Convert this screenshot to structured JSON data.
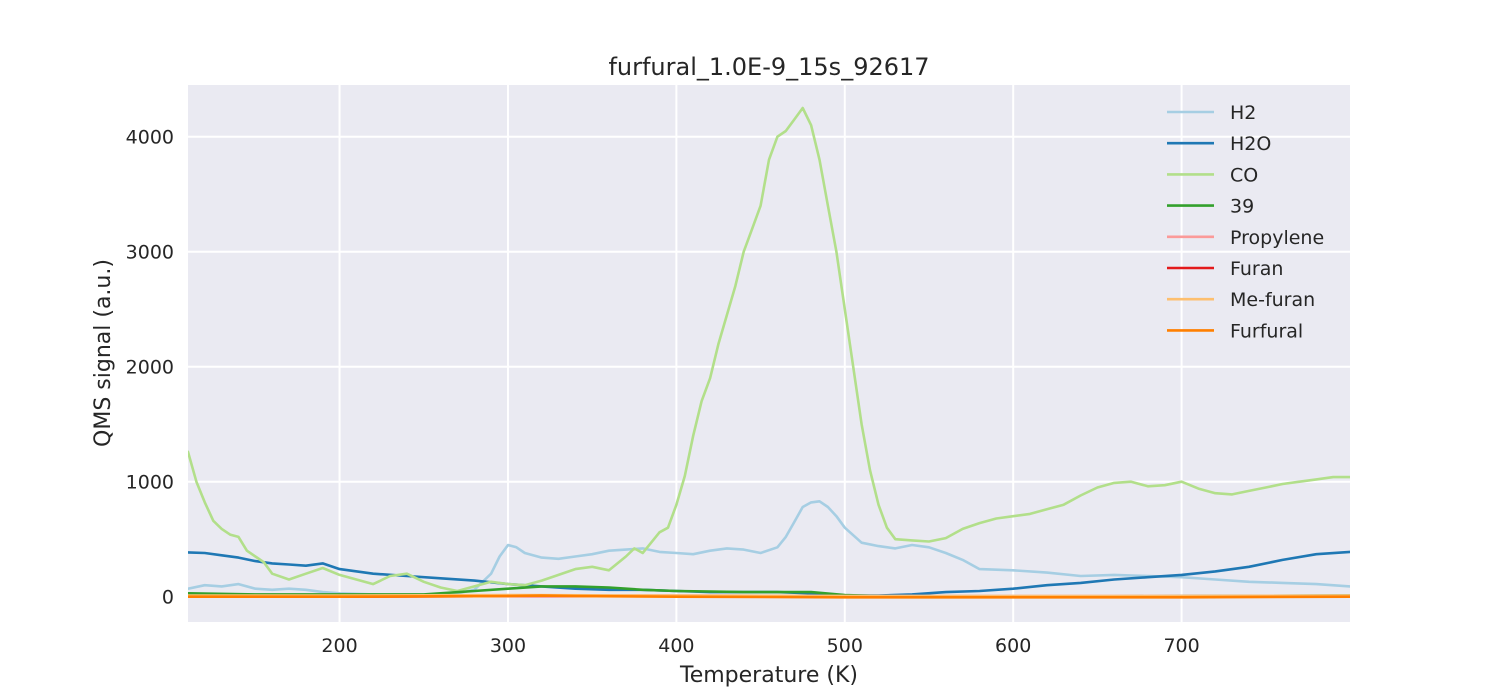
{
  "chart_data": {
    "type": "line",
    "title": "furfural_1.0E-9_15s_92617",
    "xlabel": "Temperature (K)",
    "ylabel": "QMS signal (a.u.)",
    "xlim": [
      110,
      800
    ],
    "ylim": [
      -220,
      4450
    ],
    "xticks": [
      200,
      300,
      400,
      500,
      600,
      700
    ],
    "yticks": [
      0,
      1000,
      2000,
      3000,
      4000
    ],
    "xtick_labels": [
      "200",
      "300",
      "400",
      "500",
      "600",
      "700"
    ],
    "ytick_labels": [
      "0",
      "1000",
      "2000",
      "3000",
      "4000"
    ],
    "grid": true,
    "background": "#eaeaf2",
    "legend_position": "top-right",
    "series": [
      {
        "name": "H2",
        "color": "#a6cee3",
        "x": [
          110,
          120,
          130,
          140,
          150,
          160,
          170,
          180,
          190,
          200,
          220,
          240,
          260,
          270,
          280,
          290,
          295,
          300,
          305,
          310,
          320,
          330,
          340,
          350,
          360,
          370,
          380,
          390,
          400,
          410,
          420,
          430,
          440,
          450,
          460,
          465,
          470,
          475,
          480,
          485,
          490,
          495,
          500,
          510,
          520,
          530,
          540,
          550,
          560,
          570,
          580,
          600,
          620,
          640,
          660,
          680,
          700,
          720,
          740,
          760,
          780,
          800
        ],
        "y": [
          70,
          100,
          90,
          110,
          70,
          60,
          70,
          60,
          40,
          30,
          20,
          10,
          20,
          30,
          60,
          200,
          350,
          450,
          430,
          380,
          340,
          330,
          350,
          370,
          400,
          410,
          420,
          390,
          380,
          370,
          400,
          420,
          410,
          380,
          430,
          520,
          650,
          780,
          820,
          830,
          780,
          700,
          600,
          470,
          440,
          420,
          450,
          430,
          380,
          320,
          240,
          230,
          210,
          180,
          190,
          180,
          170,
          150,
          130,
          120,
          110,
          90
        ]
      },
      {
        "name": "H2O",
        "color": "#1f78b4",
        "x": [
          110,
          120,
          130,
          140,
          150,
          160,
          170,
          180,
          190,
          200,
          220,
          240,
          260,
          280,
          300,
          320,
          340,
          360,
          380,
          400,
          420,
          440,
          460,
          480,
          500,
          520,
          540,
          560,
          580,
          600,
          620,
          640,
          660,
          680,
          700,
          720,
          740,
          760,
          780,
          800
        ],
        "y": [
          385,
          380,
          360,
          340,
          310,
          290,
          280,
          270,
          290,
          240,
          200,
          180,
          160,
          140,
          110,
          90,
          70,
          60,
          60,
          50,
          40,
          40,
          40,
          30,
          10,
          10,
          20,
          40,
          50,
          70,
          100,
          120,
          150,
          170,
          190,
          220,
          260,
          320,
          370,
          390
        ]
      },
      {
        "name": "CO",
        "color": "#b2df8a",
        "x": [
          110,
          115,
          120,
          125,
          130,
          135,
          140,
          145,
          150,
          155,
          160,
          170,
          180,
          190,
          200,
          210,
          220,
          230,
          240,
          250,
          260,
          270,
          280,
          290,
          300,
          310,
          320,
          330,
          340,
          350,
          360,
          370,
          375,
          380,
          385,
          390,
          395,
          400,
          405,
          410,
          415,
          420,
          425,
          430,
          435,
          440,
          445,
          450,
          455,
          460,
          465,
          470,
          475,
          480,
          485,
          490,
          495,
          500,
          505,
          510,
          515,
          520,
          525,
          530,
          540,
          550,
          560,
          570,
          580,
          590,
          600,
          610,
          620,
          630,
          640,
          650,
          660,
          670,
          680,
          690,
          700,
          710,
          720,
          730,
          740,
          750,
          760,
          770,
          780,
          790,
          800
        ],
        "y": [
          1260,
          1000,
          820,
          660,
          590,
          540,
          520,
          400,
          350,
          300,
          200,
          150,
          200,
          250,
          190,
          150,
          110,
          180,
          200,
          130,
          80,
          50,
          90,
          130,
          110,
          100,
          140,
          190,
          240,
          260,
          230,
          350,
          420,
          380,
          470,
          560,
          600,
          800,
          1050,
          1400,
          1700,
          1900,
          2200,
          2450,
          2700,
          3000,
          3200,
          3400,
          3800,
          4000,
          4050,
          4150,
          4250,
          4100,
          3800,
          3400,
          3000,
          2500,
          2000,
          1500,
          1100,
          800,
          600,
          500,
          490,
          480,
          510,
          590,
          640,
          680,
          700,
          720,
          760,
          800,
          880,
          950,
          990,
          1000,
          960,
          970,
          1000,
          940,
          900,
          890,
          920,
          950,
          980,
          1000,
          1020,
          1040,
          1040
        ]
      },
      {
        "name": "39",
        "color": "#33a02c",
        "x": [
          110,
          150,
          200,
          250,
          280,
          300,
          320,
          340,
          360,
          380,
          400,
          420,
          440,
          460,
          480,
          500,
          520,
          560,
          600,
          700,
          800
        ],
        "y": [
          30,
          20,
          20,
          20,
          50,
          70,
          90,
          90,
          80,
          60,
          50,
          45,
          40,
          40,
          40,
          15,
          5,
          0,
          0,
          5,
          10
        ]
      },
      {
        "name": "Propylene",
        "color": "#fb9a99",
        "x": [
          110,
          200,
          300,
          400,
          500,
          600,
          700,
          800
        ],
        "y": [
          5,
          5,
          10,
          10,
          5,
          5,
          5,
          5
        ]
      },
      {
        "name": "Furan",
        "color": "#e31a1c",
        "x": [
          110,
          200,
          300,
          400,
          500,
          600,
          700,
          800
        ],
        "y": [
          0,
          0,
          5,
          5,
          0,
          0,
          0,
          0
        ]
      },
      {
        "name": "Me-furan",
        "color": "#fdbf6f",
        "x": [
          110,
          200,
          300,
          400,
          500,
          600,
          700,
          800
        ],
        "y": [
          10,
          10,
          15,
          10,
          5,
          5,
          5,
          10
        ]
      },
      {
        "name": "Furfural",
        "color": "#ff7f00",
        "x": [
          110,
          200,
          300,
          320,
          340,
          400,
          500,
          600,
          700,
          800
        ],
        "y": [
          0,
          0,
          5,
          10,
          5,
          0,
          -5,
          -5,
          -5,
          0
        ]
      }
    ]
  }
}
